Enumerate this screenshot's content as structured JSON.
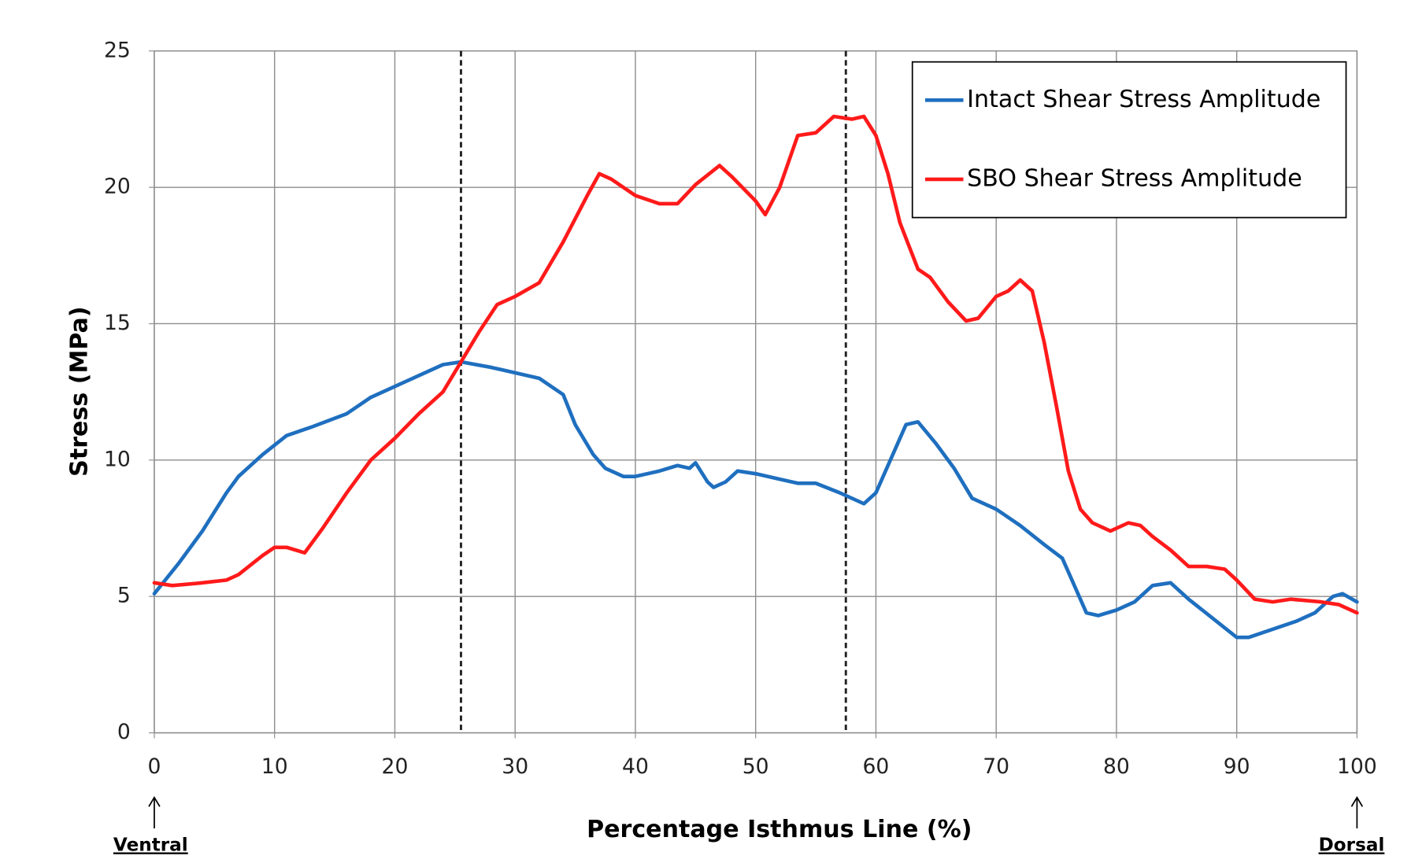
{
  "chart_data": {
    "type": "line",
    "x_label": "Percentage Isthmus Line (%)",
    "y_label": "Stress (MPa)",
    "annotations": [
      "Ventral",
      "Dorsal"
    ],
    "reference_lines": [
      25.5,
      57.5
    ],
    "xlim": [
      0,
      100
    ],
    "xticks": [
      0,
      10,
      20,
      30,
      40,
      50,
      60,
      70,
      80,
      90,
      100
    ],
    "ylim": [
      0,
      25
    ],
    "yticks": [
      0,
      5,
      10,
      15,
      20,
      25
    ],
    "grid": true,
    "legend": "upper right",
    "series": [
      {
        "name": "Intact Shear Stress Amplitude",
        "color": "#1f6fbf",
        "x": [
          0,
          2,
          4,
          6,
          7,
          9,
          11,
          13,
          16,
          18,
          20,
          22,
          24,
          25.5,
          28,
          32,
          34,
          35,
          36.5,
          37.5,
          39,
          40,
          42,
          43.5,
          44.5,
          45,
          46,
          46.5,
          47.5,
          48.5,
          50,
          52,
          53.5,
          55,
          57,
          59,
          60,
          61,
          62.5,
          63.5,
          65,
          66.5,
          68,
          70,
          72,
          74,
          75.5,
          76.5,
          77.5,
          78.5,
          80,
          81.5,
          83,
          84.5,
          86,
          88,
          90,
          91,
          93,
          95,
          96.5,
          98,
          98.8,
          100
        ],
        "values": [
          5.1,
          6.2,
          7.4,
          8.8,
          9.4,
          10.2,
          10.9,
          11.2,
          11.7,
          12.3,
          12.7,
          13.1,
          13.5,
          13.6,
          13.4,
          13.0,
          12.4,
          11.3,
          10.2,
          9.7,
          9.4,
          9.4,
          9.6,
          9.8,
          9.7,
          9.9,
          9.2,
          9.0,
          9.2,
          9.6,
          9.5,
          9.3,
          9.15,
          9.15,
          8.8,
          8.4,
          8.8,
          9.8,
          11.3,
          11.4,
          10.6,
          9.7,
          8.6,
          8.2,
          7.6,
          6.9,
          6.4,
          5.4,
          4.4,
          4.3,
          4.5,
          4.8,
          5.4,
          5.5,
          4.9,
          4.2,
          3.5,
          3.5,
          3.8,
          4.1,
          4.4,
          5.0,
          5.1,
          4.8
        ]
      },
      {
        "name": "SBO Shear Stress Amplitude",
        "color": "#ff1a1a",
        "x": [
          0,
          1.5,
          4,
          6,
          7,
          9,
          10,
          11,
          12.5,
          14,
          16,
          18,
          20,
          22,
          24,
          25.5,
          27,
          28.5,
          30,
          32,
          34,
          36,
          37,
          38,
          40,
          42,
          43.5,
          45,
          47,
          48,
          50,
          50.8,
          52,
          53.5,
          55,
          56.5,
          58,
          59,
          60,
          61,
          62,
          63.5,
          64.5,
          66,
          67.5,
          68.5,
          70,
          71,
          72,
          73,
          74,
          75,
          76,
          77,
          78,
          79.5,
          81,
          82,
          83,
          84.5,
          86,
          87.5,
          89,
          90,
          91.5,
          93,
          94.5,
          97,
          98.5,
          100
        ],
        "values": [
          5.5,
          5.4,
          5.5,
          5.6,
          5.8,
          6.5,
          6.8,
          6.8,
          6.6,
          7.5,
          8.8,
          10.0,
          10.8,
          11.7,
          12.5,
          13.6,
          14.7,
          15.7,
          16.0,
          16.5,
          18.0,
          19.7,
          20.5,
          20.3,
          19.7,
          19.4,
          19.4,
          20.1,
          20.8,
          20.4,
          19.5,
          19.0,
          20.0,
          21.9,
          22.0,
          22.6,
          22.5,
          22.6,
          21.9,
          20.5,
          18.7,
          17.0,
          16.7,
          15.8,
          15.1,
          15.2,
          16.0,
          16.2,
          16.6,
          16.2,
          14.3,
          12.0,
          9.6,
          8.2,
          7.7,
          7.4,
          7.7,
          7.6,
          7.2,
          6.7,
          6.1,
          6.1,
          6.0,
          5.6,
          4.9,
          4.8,
          4.9,
          4.8,
          4.7,
          4.4
        ]
      }
    ]
  }
}
